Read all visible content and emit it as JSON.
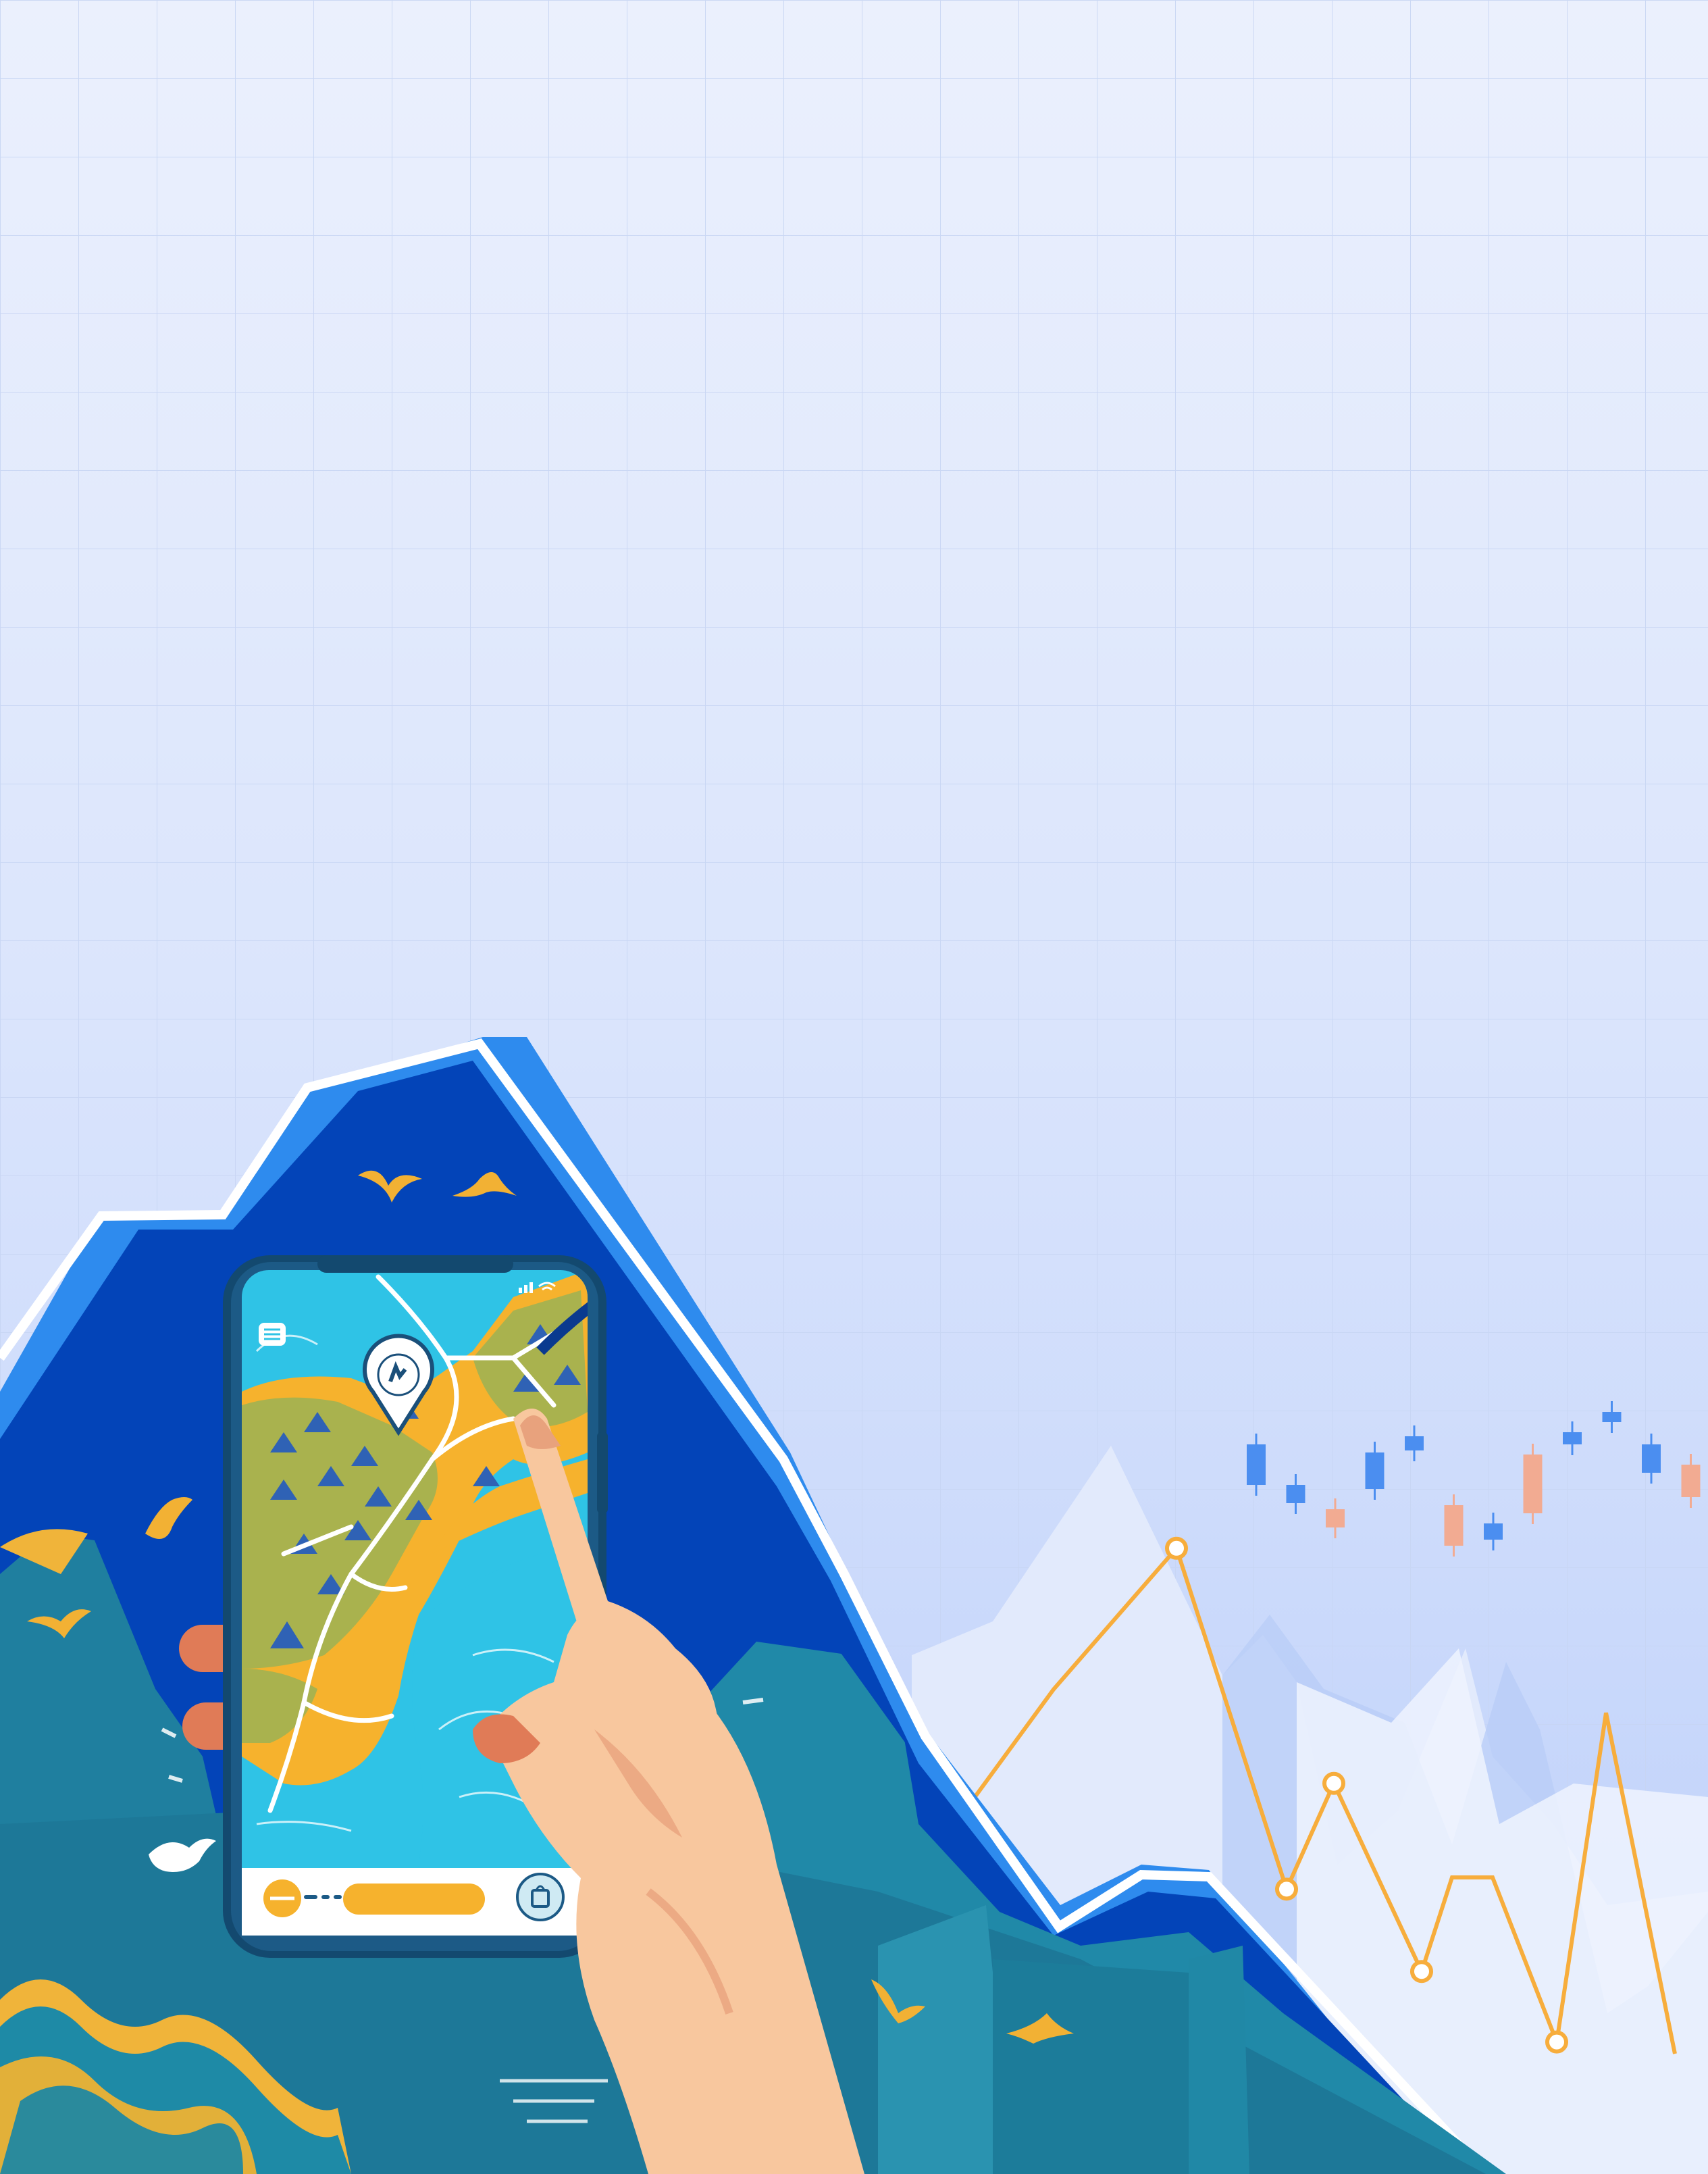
{
  "colors": {
    "sky_top": "#e8eefd",
    "sky_bottom": "#c3d4fb",
    "grid": "#c9d6f4",
    "mountain_dark": "#0341b6",
    "mountain_edge": "#2e8bee",
    "teal": "#20809d",
    "teal_dark": "#155f7a",
    "water": "#2fc3e6",
    "land_yellow": "#f6b22d",
    "land_green": "#a9b24e",
    "phone_frame": "#1c5a86",
    "skin": "#f8c79e",
    "skin_shade": "#e8a27d",
    "line_orange": "#f7ad3c",
    "candle_blue": "#4b8ef0",
    "candle_peach": "#f2ab92",
    "bg_peaks": "#dde7fb"
  },
  "icons": {
    "map_pin": "location-pin-icon",
    "menu": "menu-icon",
    "signal": "signal-icon",
    "wifi": "wifi-icon",
    "bag": "shopping-bag-icon",
    "bird": "bird-icon"
  },
  "chart_data": {
    "type": "line",
    "decorative": true,
    "series": [
      {
        "values": [
          40,
          62,
          86,
          28,
          46,
          14,
          30,
          30,
          2,
          58,
          0
        ]
      }
    ],
    "candles": [
      {
        "open": 64,
        "close": 84,
        "up": true
      },
      {
        "open": 55,
        "close": 64,
        "up": true
      },
      {
        "open": 43,
        "close": 52,
        "up": false
      },
      {
        "open": 62,
        "close": 80,
        "up": true
      },
      {
        "open": 81,
        "close": 88,
        "up": true
      },
      {
        "open": 34,
        "close": 54,
        "up": false
      },
      {
        "open": 37,
        "close": 45,
        "up": true
      },
      {
        "open": 50,
        "close": 79,
        "up": false
      },
      {
        "open": 84,
        "close": 90,
        "up": true
      },
      {
        "open": 95,
        "close": 100,
        "up": true
      },
      {
        "open": 70,
        "close": 84,
        "up": true
      },
      {
        "open": 58,
        "close": 74,
        "up": false
      }
    ],
    "grid": true
  }
}
